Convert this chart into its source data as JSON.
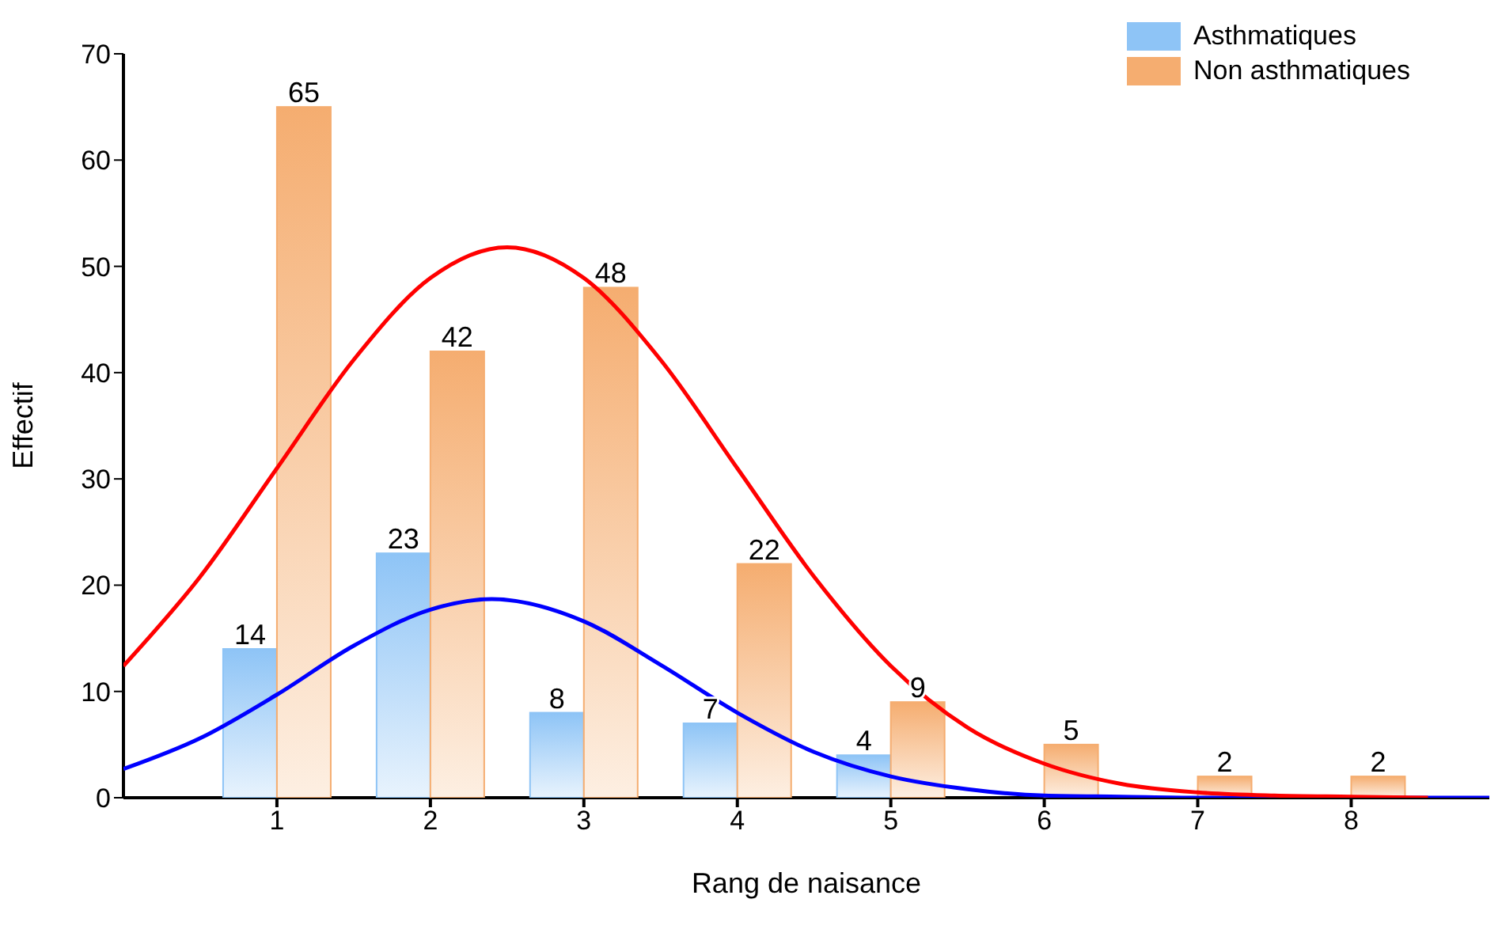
{
  "chart_data": {
    "type": "bar",
    "xlabel": "Rang de naisance",
    "ylabel": "Effectif",
    "x": [
      1,
      2,
      3,
      4,
      5,
      6,
      7,
      8
    ],
    "series": [
      {
        "name": "Asthmatiques",
        "color": "#8ec4f6",
        "values": [
          14,
          23,
          8,
          7,
          4,
          null,
          null,
          null
        ],
        "value_labels": [
          "14",
          "23",
          "8",
          "7",
          "4",
          null,
          null,
          null
        ]
      },
      {
        "name": "Non asthmatiques",
        "color": "#f5ad70",
        "values": [
          65,
          42,
          48,
          22,
          9,
          5,
          2,
          2
        ],
        "value_labels": [
          "65",
          "42",
          "48",
          "22",
          "9",
          "5",
          "2",
          "2"
        ]
      },
      {
        "type": "line",
        "color": "#0000ff",
        "x": [
          0,
          0.5,
          1,
          1.5,
          2,
          2.4,
          3,
          3.5,
          4,
          4.5,
          5,
          5.5,
          6,
          6.5,
          7,
          8,
          8.9
        ],
        "values": [
          2.7,
          5.6,
          9.7,
          14.3,
          17.7,
          18.7,
          16.6,
          12.5,
          8.0,
          4.3,
          2.0,
          0.8,
          0.2,
          0.1,
          0,
          0,
          0
        ]
      },
      {
        "type": "line",
        "color": "#ff0000",
        "x": [
          0,
          0.5,
          1,
          1.5,
          2,
          2.5,
          3,
          3.5,
          4,
          4.5,
          5,
          5.5,
          6,
          6.5,
          7,
          7.5,
          8,
          8.5
        ],
        "values": [
          12.4,
          20.8,
          31.0,
          41.2,
          48.9,
          51.8,
          48.9,
          41.2,
          31.0,
          20.8,
          12.4,
          6.6,
          3.2,
          1.3,
          0.5,
          0.2,
          0.1,
          0
        ]
      }
    ],
    "xlim": [
      0,
      8.9
    ],
    "xticks": [
      1,
      2,
      3,
      4,
      5,
      6,
      7,
      8
    ],
    "ylim": [
      0,
      70
    ],
    "yticks": [
      0,
      10,
      20,
      30,
      40,
      50,
      60,
      70
    ],
    "legend": "top right",
    "grid": false,
    "marker": "none",
    "line_style": "solid"
  }
}
